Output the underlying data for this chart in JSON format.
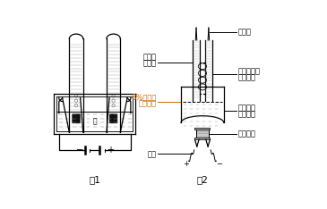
{
  "fig_width": 3.65,
  "fig_height": 2.34,
  "dpi": 100,
  "bg_color": "#ffffff",
  "fig1_label": "图1",
  "fig2_label": "图2",
  "lc": "#000000",
  "orange_color": "#cc6600",
  "water_color": "#e8f4f8",
  "neck_color": "#cccccc",
  "label_tip": "尖嘴管",
  "label_rubber": "含玻璃小球",
  "label_rubber2": "的橡皮管",
  "label_bottle": "截取底部",
  "label_bottle2": "的塑料瓶",
  "label_needle": "注射针头",
  "label_pipette": "改进的",
  "label_pipette2": "移液管",
  "label_solution": "8%的氢氧",
  "label_solution2": "化钠溶液",
  "label_wire": "导线"
}
